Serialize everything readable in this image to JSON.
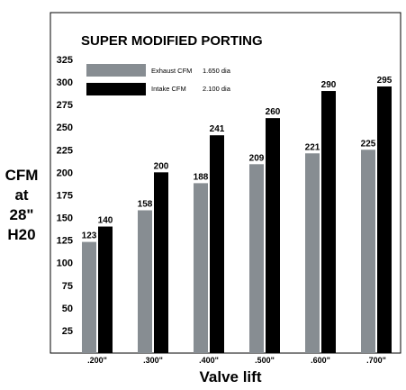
{
  "chart_data": {
    "type": "bar",
    "title": "SUPER MODIFIED PORTING",
    "xlabel": "Valve lift",
    "ylabel_lines": [
      "CFM",
      "at",
      "28\"",
      "H20"
    ],
    "categories": [
      ".200\"",
      ".300\"",
      ".400\"",
      ".500\"",
      ".600\"",
      ".700\""
    ],
    "ylim": [
      0,
      340
    ],
    "yticks": [
      25,
      50,
      75,
      100,
      125,
      150,
      175,
      200,
      225,
      250,
      275,
      300,
      325
    ],
    "series": [
      {
        "name": "Exhaust CFM",
        "note": "1.650 dia",
        "color": "#878d92",
        "values": [
          123,
          158,
          188,
          209,
          221,
          225
        ]
      },
      {
        "name": "Intake CFM",
        "note": "2.100 dia",
        "color": "#000000",
        "values": [
          140,
          200,
          241,
          260,
          290,
          295
        ]
      }
    ],
    "legend_position": "top-left",
    "grid": false
  }
}
